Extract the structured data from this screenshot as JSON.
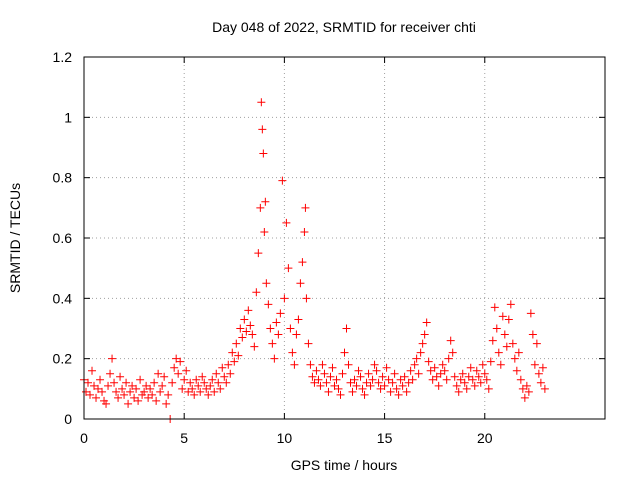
{
  "chart_data": {
    "type": "scatter",
    "title": "Day 048 of 2022, SRMTID for receiver chti",
    "xlabel": "GPS time / hours",
    "ylabel": "SRMTID / TECUs",
    "xlim": [
      0,
      26
    ],
    "ylim": [
      0,
      1.2
    ],
    "xticks": [
      0,
      5,
      10,
      15,
      20
    ],
    "xtick_labels": [
      "0",
      "5",
      "10",
      "15",
      "20"
    ],
    "yticks": [
      0,
      0.2,
      0.4,
      0.6,
      0.8,
      1,
      1.2
    ],
    "ytick_labels": [
      "0",
      "0.2",
      "0.4",
      "0.6",
      "0.8",
      "1",
      "1.2"
    ],
    "grid": true,
    "marker": "plus",
    "color": "#ff0000",
    "series": [
      {
        "name": "SRMTID",
        "points": [
          [
            0.0,
            0.13
          ],
          [
            0.1,
            0.09
          ],
          [
            0.2,
            0.12
          ],
          [
            0.3,
            0.08
          ],
          [
            0.4,
            0.16
          ],
          [
            0.5,
            0.11
          ],
          [
            0.6,
            0.07
          ],
          [
            0.7,
            0.1
          ],
          [
            0.8,
            0.13
          ],
          [
            0.9,
            0.09
          ],
          [
            1.0,
            0.06
          ],
          [
            1.1,
            0.05
          ],
          [
            1.2,
            0.11
          ],
          [
            1.3,
            0.15
          ],
          [
            1.4,
            0.2
          ],
          [
            1.5,
            0.12
          ],
          [
            1.6,
            0.09
          ],
          [
            1.7,
            0.07
          ],
          [
            1.8,
            0.14
          ],
          [
            1.9,
            0.1
          ],
          [
            2.0,
            0.08
          ],
          [
            2.1,
            0.12
          ],
          [
            2.2,
            0.05
          ],
          [
            2.3,
            0.09
          ],
          [
            2.4,
            0.11
          ],
          [
            2.5,
            0.07
          ],
          [
            2.6,
            0.1
          ],
          [
            2.7,
            0.06
          ],
          [
            2.8,
            0.13
          ],
          [
            2.9,
            0.08
          ],
          [
            3.0,
            0.09
          ],
          [
            3.1,
            0.11
          ],
          [
            3.2,
            0.07
          ],
          [
            3.3,
            0.1
          ],
          [
            3.4,
            0.08
          ],
          [
            3.5,
            0.12
          ],
          [
            3.6,
            0.06
          ],
          [
            3.7,
            0.15
          ],
          [
            3.8,
            0.09
          ],
          [
            3.9,
            0.11
          ],
          [
            4.0,
            0.14
          ],
          [
            4.1,
            0.05
          ],
          [
            4.2,
            0.08
          ],
          [
            4.3,
            0.0
          ],
          [
            4.4,
            0.12
          ],
          [
            4.5,
            0.17
          ],
          [
            4.6,
            0.2
          ],
          [
            4.7,
            0.15
          ],
          [
            4.8,
            0.19
          ],
          [
            4.9,
            0.1
          ],
          [
            5.0,
            0.13
          ],
          [
            5.1,
            0.16
          ],
          [
            5.2,
            0.09
          ],
          [
            5.3,
            0.12
          ],
          [
            5.4,
            0.1
          ],
          [
            5.5,
            0.08
          ],
          [
            5.6,
            0.13
          ],
          [
            5.7,
            0.11
          ],
          [
            5.8,
            0.09
          ],
          [
            5.9,
            0.14
          ],
          [
            6.0,
            0.12
          ],
          [
            6.1,
            0.1
          ],
          [
            6.2,
            0.08
          ],
          [
            6.3,
            0.11
          ],
          [
            6.4,
            0.13
          ],
          [
            6.5,
            0.09
          ],
          [
            6.6,
            0.15
          ],
          [
            6.7,
            0.12
          ],
          [
            6.8,
            0.1
          ],
          [
            6.9,
            0.17
          ],
          [
            7.0,
            0.14
          ],
          [
            7.1,
            0.12
          ],
          [
            7.2,
            0.18
          ],
          [
            7.3,
            0.15
          ],
          [
            7.4,
            0.22
          ],
          [
            7.5,
            0.19
          ],
          [
            7.6,
            0.25
          ],
          [
            7.7,
            0.21
          ],
          [
            7.8,
            0.3
          ],
          [
            7.9,
            0.27
          ],
          [
            8.0,
            0.33
          ],
          [
            8.1,
            0.29
          ],
          [
            8.2,
            0.36
          ],
          [
            8.3,
            0.31
          ],
          [
            8.4,
            0.28
          ],
          [
            8.5,
            0.24
          ],
          [
            8.6,
            0.42
          ],
          [
            8.7,
            0.55
          ],
          [
            8.8,
            0.7
          ],
          [
            8.85,
            1.05
          ],
          [
            8.9,
            0.96
          ],
          [
            8.95,
            0.88
          ],
          [
            9.0,
            0.62
          ],
          [
            9.05,
            0.72
          ],
          [
            9.1,
            0.45
          ],
          [
            9.2,
            0.38
          ],
          [
            9.3,
            0.3
          ],
          [
            9.4,
            0.25
          ],
          [
            9.5,
            0.2
          ],
          [
            9.6,
            0.32
          ],
          [
            9.7,
            0.28
          ],
          [
            9.8,
            0.35
          ],
          [
            9.9,
            0.79
          ],
          [
            10.0,
            0.4
          ],
          [
            10.1,
            0.65
          ],
          [
            10.2,
            0.5
          ],
          [
            10.3,
            0.3
          ],
          [
            10.4,
            0.22
          ],
          [
            10.5,
            0.18
          ],
          [
            10.6,
            0.28
          ],
          [
            10.7,
            0.33
          ],
          [
            10.8,
            0.45
          ],
          [
            10.9,
            0.52
          ],
          [
            11.0,
            0.62
          ],
          [
            11.05,
            0.7
          ],
          [
            11.1,
            0.4
          ],
          [
            11.2,
            0.25
          ],
          [
            11.3,
            0.18
          ],
          [
            11.4,
            0.14
          ],
          [
            11.5,
            0.12
          ],
          [
            11.6,
            0.16
          ],
          [
            11.7,
            0.13
          ],
          [
            11.8,
            0.11
          ],
          [
            11.9,
            0.18
          ],
          [
            12.0,
            0.15
          ],
          [
            12.1,
            0.12
          ],
          [
            12.2,
            0.09
          ],
          [
            12.3,
            0.14
          ],
          [
            12.4,
            0.17
          ],
          [
            12.5,
            0.11
          ],
          [
            12.6,
            0.13
          ],
          [
            12.7,
            0.1
          ],
          [
            12.8,
            0.08
          ],
          [
            12.9,
            0.15
          ],
          [
            13.0,
            0.22
          ],
          [
            13.1,
            0.3
          ],
          [
            13.2,
            0.18
          ],
          [
            13.3,
            0.12
          ],
          [
            13.4,
            0.09
          ],
          [
            13.5,
            0.13
          ],
          [
            13.6,
            0.11
          ],
          [
            13.7,
            0.16
          ],
          [
            13.8,
            0.14
          ],
          [
            13.9,
            0.1
          ],
          [
            14.0,
            0.08
          ],
          [
            14.1,
            0.12
          ],
          [
            14.2,
            0.15
          ],
          [
            14.3,
            0.11
          ],
          [
            14.4,
            0.13
          ],
          [
            14.5,
            0.18
          ],
          [
            14.6,
            0.16
          ],
          [
            14.7,
            0.12
          ],
          [
            14.8,
            0.1
          ],
          [
            14.9,
            0.14
          ],
          [
            15.0,
            0.11
          ],
          [
            15.1,
            0.17
          ],
          [
            15.2,
            0.13
          ],
          [
            15.3,
            0.09
          ],
          [
            15.4,
            0.12
          ],
          [
            15.5,
            0.15
          ],
          [
            15.6,
            0.1
          ],
          [
            15.7,
            0.08
          ],
          [
            15.8,
            0.13
          ],
          [
            15.9,
            0.11
          ],
          [
            16.0,
            0.14
          ],
          [
            16.1,
            0.09
          ],
          [
            16.2,
            0.12
          ],
          [
            16.3,
            0.16
          ],
          [
            16.4,
            0.13
          ],
          [
            16.5,
            0.18
          ],
          [
            16.6,
            0.2
          ],
          [
            16.7,
            0.15
          ],
          [
            16.8,
            0.22
          ],
          [
            16.9,
            0.25
          ],
          [
            17.0,
            0.28
          ],
          [
            17.1,
            0.32
          ],
          [
            17.2,
            0.19
          ],
          [
            17.3,
            0.16
          ],
          [
            17.4,
            0.13
          ],
          [
            17.5,
            0.17
          ],
          [
            17.6,
            0.14
          ],
          [
            17.7,
            0.11
          ],
          [
            17.8,
            0.15
          ],
          [
            17.9,
            0.18
          ],
          [
            18.0,
            0.16
          ],
          [
            18.1,
            0.13
          ],
          [
            18.2,
            0.2
          ],
          [
            18.3,
            0.26
          ],
          [
            18.4,
            0.22
          ],
          [
            18.5,
            0.14
          ],
          [
            18.6,
            0.11
          ],
          [
            18.7,
            0.09
          ],
          [
            18.8,
            0.13
          ],
          [
            18.9,
            0.15
          ],
          [
            19.0,
            0.12
          ],
          [
            19.1,
            0.1
          ],
          [
            19.2,
            0.14
          ],
          [
            19.3,
            0.17
          ],
          [
            19.4,
            0.13
          ],
          [
            19.5,
            0.11
          ],
          [
            19.6,
            0.16
          ],
          [
            19.7,
            0.14
          ],
          [
            19.8,
            0.12
          ],
          [
            19.9,
            0.18
          ],
          [
            20.0,
            0.15
          ],
          [
            20.1,
            0.13
          ],
          [
            20.2,
            0.1
          ],
          [
            20.3,
            0.19
          ],
          [
            20.4,
            0.26
          ],
          [
            20.5,
            0.37
          ],
          [
            20.6,
            0.3
          ],
          [
            20.7,
            0.22
          ],
          [
            20.8,
            0.18
          ],
          [
            20.9,
            0.34
          ],
          [
            21.0,
            0.28
          ],
          [
            21.1,
            0.24
          ],
          [
            21.2,
            0.33
          ],
          [
            21.3,
            0.38
          ],
          [
            21.4,
            0.25
          ],
          [
            21.5,
            0.2
          ],
          [
            21.6,
            0.16
          ],
          [
            21.7,
            0.22
          ],
          [
            21.8,
            0.13
          ],
          [
            21.9,
            0.1
          ],
          [
            22.0,
            0.07
          ],
          [
            22.1,
            0.11
          ],
          [
            22.2,
            0.09
          ],
          [
            22.3,
            0.35
          ],
          [
            22.4,
            0.28
          ],
          [
            22.5,
            0.18
          ],
          [
            22.6,
            0.25
          ],
          [
            22.7,
            0.15
          ],
          [
            22.8,
            0.12
          ],
          [
            22.9,
            0.17
          ],
          [
            23.0,
            0.1
          ]
        ]
      }
    ]
  }
}
